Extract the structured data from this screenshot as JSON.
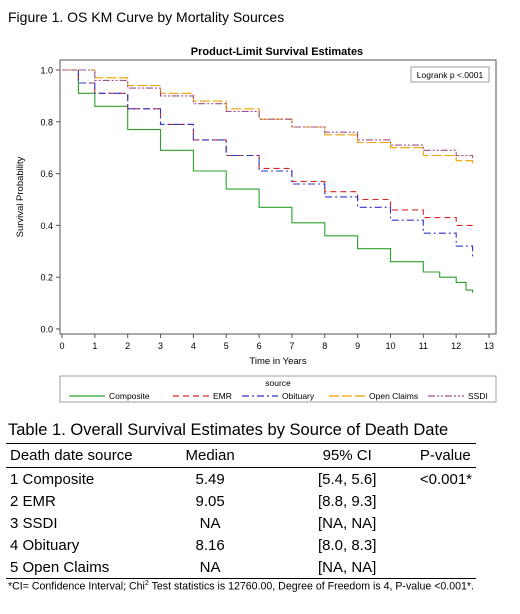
{
  "figure_title": "Figure 1. OS KM Curve by Mortality Sources",
  "colors": {
    "composite": "#2ca02c",
    "emr": "#d62728",
    "obituary": "#3333cc",
    "open_claims": "#f0a000",
    "ssdi": "#a0508a"
  },
  "chart_data": {
    "type": "line",
    "title": "Product-Limit Survival Estimates",
    "xlabel": "Time in Years",
    "ylabel": "Survival Probability",
    "xlim": [
      0,
      13
    ],
    "ylim": [
      0,
      1
    ],
    "xticks": [
      "0",
      "1",
      "2",
      "3",
      "4",
      "5",
      "6",
      "7",
      "8",
      "9",
      "10",
      "11",
      "12",
      "13"
    ],
    "yticks": [
      "0.0",
      "0.2",
      "0.4",
      "0.6",
      "0.8",
      "1.0"
    ],
    "annotation": "Logrank p <.0001",
    "legend_title": "source",
    "legend_position": "bottom",
    "series": [
      {
        "name": "Composite",
        "color": "#2ca02c",
        "dash": "solid",
        "x": [
          0,
          0.5,
          1,
          2,
          3,
          4,
          5,
          6,
          7,
          8,
          9,
          10,
          11,
          11.5,
          12,
          12.3,
          12.5
        ],
        "y": [
          1.0,
          0.91,
          0.86,
          0.77,
          0.69,
          0.61,
          0.54,
          0.47,
          0.41,
          0.36,
          0.31,
          0.26,
          0.22,
          0.2,
          0.18,
          0.15,
          0.14
        ]
      },
      {
        "name": "EMR",
        "color": "#d62728",
        "dash": "dash",
        "x": [
          0,
          0.5,
          1,
          2,
          3,
          4,
          5,
          6,
          7,
          8,
          9,
          10,
          11,
          12,
          12.5
        ],
        "y": [
          1.0,
          0.95,
          0.91,
          0.85,
          0.79,
          0.73,
          0.67,
          0.62,
          0.57,
          0.53,
          0.5,
          0.46,
          0.43,
          0.4,
          0.39
        ]
      },
      {
        "name": "Obituary",
        "color": "#3333cc",
        "dash": "dashdot",
        "x": [
          0,
          0.5,
          1,
          2,
          3,
          4,
          5,
          6,
          7,
          8,
          9,
          10,
          11,
          12,
          12.5
        ],
        "y": [
          1.0,
          0.95,
          0.91,
          0.85,
          0.79,
          0.73,
          0.67,
          0.61,
          0.56,
          0.51,
          0.47,
          0.42,
          0.37,
          0.32,
          0.28
        ]
      },
      {
        "name": "Open Claims",
        "color": "#f0a000",
        "dash": "longdash",
        "x": [
          0,
          1,
          2,
          3,
          4,
          5,
          6,
          7,
          8,
          9,
          10,
          11,
          12,
          12.5
        ],
        "y": [
          1.0,
          0.97,
          0.94,
          0.91,
          0.88,
          0.85,
          0.81,
          0.78,
          0.75,
          0.72,
          0.7,
          0.67,
          0.65,
          0.64
        ]
      },
      {
        "name": "SSDI",
        "color": "#a0508a",
        "dash": "dashdotdot",
        "x": [
          0,
          1,
          2,
          3,
          4,
          5,
          6,
          7,
          8,
          9,
          10,
          11,
          12,
          12.5
        ],
        "y": [
          1.0,
          0.96,
          0.93,
          0.9,
          0.87,
          0.84,
          0.81,
          0.78,
          0.76,
          0.73,
          0.71,
          0.69,
          0.67,
          0.66
        ]
      }
    ]
  },
  "table": {
    "title": "Table 1. Overall Survival Estimates by Source of Death Date",
    "headers": [
      "Death date source",
      "Median",
      "95% CI",
      "P-value"
    ],
    "rows": [
      [
        "1 Composite",
        "5.49",
        "[5.4, 5.6]",
        "<0.001*"
      ],
      [
        "2 EMR",
        "9.05",
        "[8.8, 9.3]",
        ""
      ],
      [
        "3 SSDI",
        "NA",
        "[NA, NA]",
        ""
      ],
      [
        "4 Obituary",
        "8.16",
        "[8.0, 8.3]",
        ""
      ],
      [
        "5 Open Claims",
        "NA",
        "[NA, NA]",
        ""
      ]
    ]
  },
  "footnote": {
    "part1": "*CI= Confidence Interval; Chi",
    "sup": "2",
    "part2": " Test statistics is 12760.00, Degree of Freedom is 4, P-value <0.001*."
  }
}
